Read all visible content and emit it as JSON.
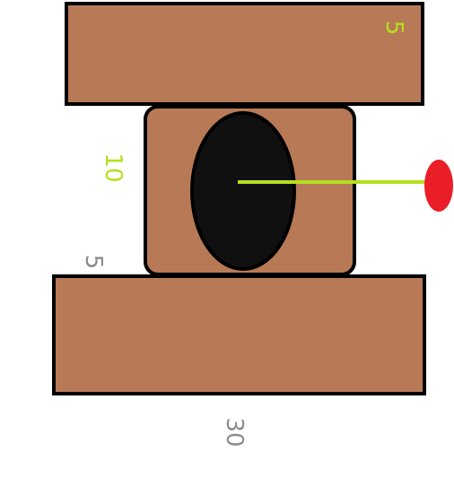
{
  "colors": {
    "block_fill": "#b87a56",
    "outline": "#000000",
    "ellipse_fill": "#101010",
    "line": "#b4e01e",
    "dot": "#ea1e28",
    "label_green": "#b4e01e",
    "label_gray": "#8c8c8c",
    "background": "#ffffff"
  },
  "labels": {
    "top_dimension": "5",
    "middle_dimension": "10",
    "gap_dimension": "5",
    "bottom_dimension": "30"
  }
}
